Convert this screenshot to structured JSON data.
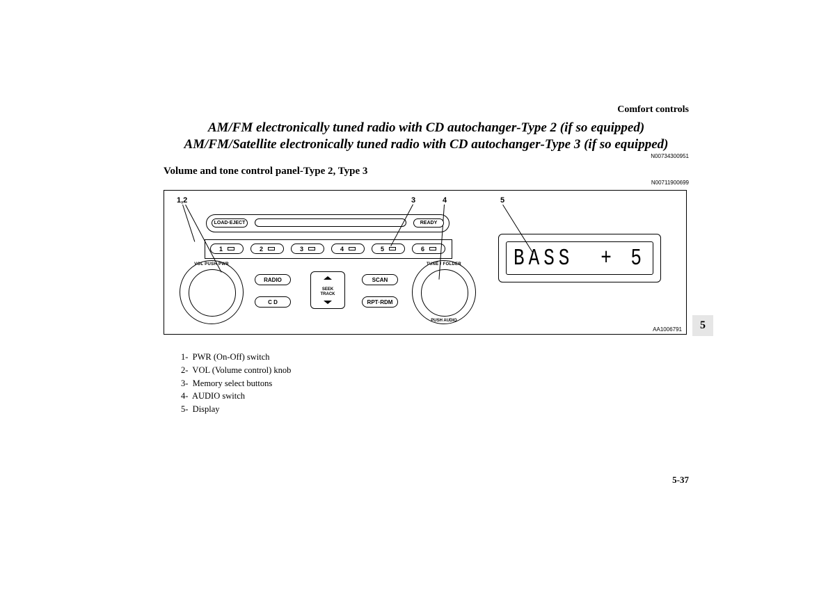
{
  "header": {
    "section": "Comfort controls"
  },
  "title": {
    "line1": "AM/FM electronically tuned radio with CD autochanger-Type 2 (if so equipped)",
    "line2": "AM/FM/Satellite electronically tuned radio with CD autochanger-Type 3 (if so equipped)"
  },
  "ref_codes": {
    "top": "N00734300951",
    "sub": "N00711900699",
    "figure": "AA1006791"
  },
  "subtitle": "Volume and tone control panel-Type 2, Type 3",
  "callouts": {
    "c12": "1,2",
    "c3": "3",
    "c4": "4",
    "c5": "5"
  },
  "panel": {
    "load_eject": "LOAD·EJECT",
    "ready": "READY",
    "presets": [
      "1",
      "2",
      "3",
      "4",
      "5",
      "6"
    ],
    "radio_btn": "RADIO",
    "cd_btn": "C D",
    "scan_btn": "SCAN",
    "rpt_rdm_btn": "RPT·RDM",
    "seek_label": "SEEK\nTRACK",
    "vol_knob_top": "VOL  PUSH PWR",
    "tune_knob_top": "TUNE / FOLDER",
    "tune_knob_bot": "PUSH AUDIO"
  },
  "display": {
    "text": "BASS",
    "value": "+ 5"
  },
  "legend": {
    "i1": "1-  PWR (On-Off) switch",
    "i2": "2-  VOL (Volume control) knob",
    "i3": "3-  Memory select buttons",
    "i4": "4-  AUDIO switch",
    "i5": "5-  Display"
  },
  "chapter": "5",
  "page": "5-37"
}
